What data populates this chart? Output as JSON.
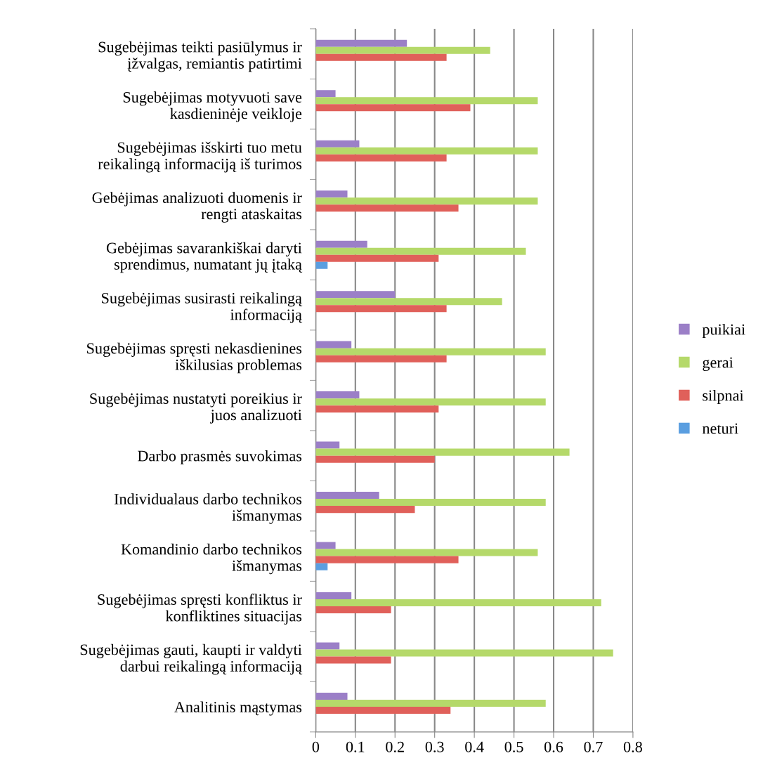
{
  "chart_data": {
    "type": "bar",
    "orientation": "horizontal",
    "categories": [
      "Sugebėjimas teikti pasiūlymus ir\nįžvalgas, remiantis patirtimi",
      "Sugebėjimas motyvuoti save\nkasdieninėje veikloje",
      "Sugebėjimas išskirti tuo metu\nreikalingą informaciją iš turimos",
      "Gebėjimas analizuoti duomenis ir\nrengti ataskaitas",
      "Gebėjimas savarankiškai daryti\nsprendimus, numatant jų įtaką",
      "Sugebėjimas susirasti reikalingą\ninformaciją",
      "Sugebėjimas spręsti nekasdienines\niškilusias problemas",
      "Sugebėjimas nustatyti poreikius ir\njuos analizuoti",
      "Darbo prasmės suvokimas",
      "Individualaus darbo technikos\nišmanymas",
      "Komandinio darbo technikos\nišmanymas",
      "Sugebėjimas spręsti konfliktus ir\nkonfliktines situacijas",
      "Sugebėjimas gauti, kaupti ir valdyti\ndarbui reikalingą informaciją",
      "Analitinis mąstymas"
    ],
    "series": [
      {
        "name": "puikiai",
        "color": "#9b7fc7",
        "values": [
          0.23,
          0.05,
          0.11,
          0.08,
          0.13,
          0.2,
          0.09,
          0.11,
          0.06,
          0.16,
          0.05,
          0.09,
          0.06,
          0.08
        ]
      },
      {
        "name": "gerai",
        "color": "#b5d96a",
        "values": [
          0.44,
          0.56,
          0.56,
          0.56,
          0.53,
          0.47,
          0.58,
          0.58,
          0.64,
          0.58,
          0.56,
          0.72,
          0.75,
          0.58
        ]
      },
      {
        "name": "silpnai",
        "color": "#e0605a",
        "values": [
          0.33,
          0.39,
          0.33,
          0.36,
          0.31,
          0.33,
          0.33,
          0.31,
          0.3,
          0.25,
          0.36,
          0.19,
          0.19,
          0.34
        ]
      },
      {
        "name": "neturi",
        "color": "#5a9ee0",
        "values": [
          null,
          null,
          null,
          null,
          0.03,
          null,
          null,
          null,
          null,
          null,
          0.03,
          null,
          null,
          null
        ]
      }
    ],
    "xlim": [
      0,
      0.8
    ],
    "xticks": [
      0,
      0.1,
      0.2,
      0.3,
      0.4,
      0.5,
      0.6,
      0.7,
      0.8
    ],
    "grid": "x",
    "legend": "right"
  }
}
